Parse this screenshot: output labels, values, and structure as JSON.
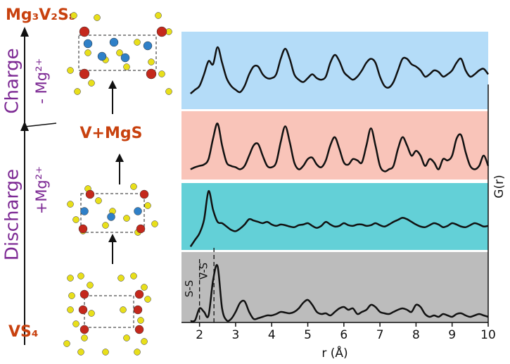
{
  "diagram": {
    "top_state": "Mg₃V₂S₈",
    "middle_state": "V+MgS",
    "bottom_state": "VS₄",
    "charge": "Charge",
    "charge_ion": "- Mg²⁺",
    "discharge": "Discharge",
    "discharge_ion": "+Mg²⁺"
  },
  "chart_data": {
    "type": "line",
    "x_label": "r (Å)",
    "y_label": "G(r)",
    "xlim": [
      1.5,
      10
    ],
    "xticks": [
      2,
      3,
      4,
      5,
      6,
      7,
      8,
      9,
      10
    ],
    "ylim": [
      0,
      1
    ],
    "line_color": "#111111",
    "x": [
      1.75,
      1.875,
      2,
      2.125,
      2.25,
      2.375,
      2.5,
      2.625,
      2.75,
      2.875,
      3,
      3.125,
      3.25,
      3.375,
      3.5,
      3.625,
      3.75,
      3.875,
      4,
      4.125,
      4.25,
      4.375,
      4.5,
      4.625,
      4.75,
      4.875,
      5,
      5.125,
      5.25,
      5.375,
      5.5,
      5.625,
      5.75,
      5.875,
      6,
      6.125,
      6.25,
      6.375,
      6.5,
      6.625,
      6.75,
      6.875,
      7,
      7.125,
      7.25,
      7.375,
      7.5,
      7.625,
      7.75,
      7.875,
      8,
      8.125,
      8.25,
      8.375,
      8.5,
      8.625,
      8.75,
      8.875,
      9,
      9.125,
      9.25,
      9.375,
      9.5,
      9.625,
      9.75,
      9.875,
      10
    ],
    "series": [
      {
        "background": "#b4dcf8",
        "values": [
          0.2,
          0.25,
          0.3,
          0.45,
          0.62,
          0.58,
          0.8,
          0.6,
          0.4,
          0.3,
          0.25,
          0.22,
          0.3,
          0.45,
          0.55,
          0.55,
          0.45,
          0.4,
          0.4,
          0.45,
          0.65,
          0.78,
          0.65,
          0.45,
          0.38,
          0.35,
          0.4,
          0.45,
          0.4,
          0.38,
          0.42,
          0.6,
          0.7,
          0.62,
          0.48,
          0.42,
          0.38,
          0.42,
          0.5,
          0.6,
          0.65,
          0.6,
          0.42,
          0.3,
          0.28,
          0.35,
          0.5,
          0.65,
          0.65,
          0.58,
          0.55,
          0.5,
          0.42,
          0.45,
          0.5,
          0.48,
          0.42,
          0.45,
          0.5,
          0.6,
          0.65,
          0.5,
          0.42,
          0.45,
          0.5,
          0.52,
          0.45
        ]
      },
      {
        "background": "#f9c4b9",
        "values": [
          0.15,
          0.18,
          0.2,
          0.22,
          0.3,
          0.6,
          0.82,
          0.5,
          0.25,
          0.2,
          0.18,
          0.15,
          0.2,
          0.35,
          0.5,
          0.52,
          0.35,
          0.2,
          0.18,
          0.25,
          0.55,
          0.78,
          0.55,
          0.25,
          0.15,
          0.2,
          0.3,
          0.32,
          0.22,
          0.18,
          0.28,
          0.5,
          0.62,
          0.45,
          0.25,
          0.22,
          0.3,
          0.28,
          0.25,
          0.5,
          0.75,
          0.5,
          0.2,
          0.12,
          0.15,
          0.2,
          0.45,
          0.62,
          0.5,
          0.35,
          0.42,
          0.35,
          0.2,
          0.3,
          0.25,
          0.15,
          0.3,
          0.28,
          0.35,
          0.6,
          0.65,
          0.4,
          0.2,
          0.15,
          0.2,
          0.35,
          0.2
        ]
      },
      {
        "background": "#63d0d7",
        "values": [
          0.05,
          0.15,
          0.25,
          0.45,
          0.88,
          0.6,
          0.42,
          0.4,
          0.35,
          0.3,
          0.28,
          0.32,
          0.38,
          0.46,
          0.44,
          0.42,
          0.4,
          0.42,
          0.38,
          0.36,
          0.38,
          0.37,
          0.35,
          0.34,
          0.37,
          0.38,
          0.4,
          0.36,
          0.33,
          0.36,
          0.42,
          0.38,
          0.35,
          0.36,
          0.4,
          0.37,
          0.36,
          0.38,
          0.38,
          0.36,
          0.37,
          0.4,
          0.37,
          0.35,
          0.38,
          0.42,
          0.45,
          0.48,
          0.46,
          0.42,
          0.38,
          0.35,
          0.34,
          0.37,
          0.4,
          0.38,
          0.34,
          0.36,
          0.4,
          0.38,
          0.35,
          0.34,
          0.37,
          0.4,
          0.38,
          0.35,
          0.36
        ]
      },
      {
        "background": "#bcbcbc",
        "values": [
          0.02,
          0.03,
          0.2,
          0.15,
          0.1,
          0.6,
          0.8,
          0.2,
          0.03,
          0.05,
          0.15,
          0.28,
          0.3,
          0.15,
          0.05,
          0.06,
          0.08,
          0.1,
          0.1,
          0.12,
          0.15,
          0.14,
          0.13,
          0.15,
          0.2,
          0.28,
          0.32,
          0.25,
          0.15,
          0.12,
          0.13,
          0.1,
          0.15,
          0.2,
          0.22,
          0.18,
          0.2,
          0.12,
          0.15,
          0.18,
          0.25,
          0.22,
          0.15,
          0.13,
          0.12,
          0.15,
          0.18,
          0.2,
          0.18,
          0.15,
          0.25,
          0.22,
          0.12,
          0.08,
          0.1,
          0.08,
          0.12,
          0.1,
          0.08,
          0.12,
          0.13,
          0.1,
          0.08,
          0.1,
          0.12,
          0.1,
          0.08
        ]
      }
    ],
    "annotations": [
      {
        "text": "S-S",
        "x": 2.0
      },
      {
        "text": "V-S",
        "x": 2.4
      }
    ]
  }
}
